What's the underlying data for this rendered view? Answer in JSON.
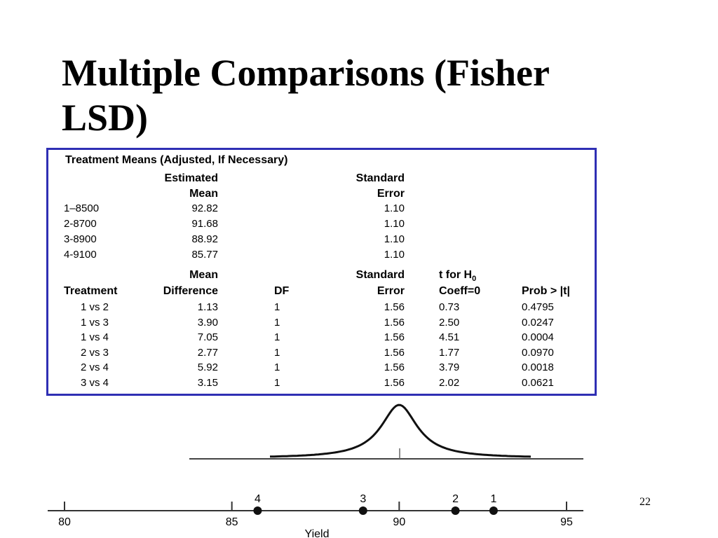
{
  "slide": {
    "title_line1": "Multiple Comparisons (Fisher",
    "title_line2": "LSD)",
    "page_number": "22"
  },
  "table": {
    "caption": "Treatment Means (Adjusted, If Necessary)",
    "means_headers": {
      "estimated_mean_1": "Estimated",
      "estimated_mean_2": "Mean",
      "se_1": "Standard",
      "se_2": "Error"
    },
    "means_rows": [
      {
        "label": "1–8500",
        "mean": "92.82",
        "se": "1.10"
      },
      {
        "label": "2-8700",
        "mean": "91.68",
        "se": "1.10"
      },
      {
        "label": "3-8900",
        "mean": "88.92",
        "se": "1.10"
      },
      {
        "label": "4-9100",
        "mean": "85.77",
        "se": "1.10"
      }
    ],
    "comp_headers": {
      "treatment": "Treatment",
      "mean_diff_1": "Mean",
      "mean_diff_2": "Difference",
      "df": "DF",
      "se_1": "Standard",
      "se_2": "Error",
      "t_1": "t for H",
      "t_sub": "0",
      "t_2": "Coeff=0",
      "prob_1": "Prob > |",
      "prob_t": "t",
      "prob_2": "|"
    },
    "comp_rows": [
      {
        "treatment": "1 vs 2",
        "diff": "1.13",
        "df": "1",
        "se": "1.56",
        "t": "0.73",
        "p": "0.4795"
      },
      {
        "treatment": "1 vs 3",
        "diff": "3.90",
        "df": "1",
        "se": "1.56",
        "t": "2.50",
        "p": "0.0247"
      },
      {
        "treatment": "1 vs 4",
        "diff": "7.05",
        "df": "1",
        "se": "1.56",
        "t": "4.51",
        "p": "0.0004"
      },
      {
        "treatment": "2 vs 3",
        "diff": "2.77",
        "df": "1",
        "se": "1.56",
        "t": "1.77",
        "p": "0.0970"
      },
      {
        "treatment": "2 vs 4",
        "diff": "5.92",
        "df": "1",
        "se": "1.56",
        "t": "3.79",
        "p": "0.0018"
      },
      {
        "treatment": "3 vs 4",
        "diff": "3.15",
        "df": "1",
        "se": "1.56",
        "t": "2.02",
        "p": "0.0621"
      }
    ]
  },
  "figure": {
    "xlabel": "Yield",
    "xlim": [
      80,
      95
    ],
    "ticks": [
      80,
      85,
      90,
      95
    ],
    "points": [
      {
        "label": "4",
        "value": 85.77
      },
      {
        "label": "3",
        "value": 88.92
      },
      {
        "label": "2",
        "value": 91.68
      },
      {
        "label": "1",
        "value": 92.82
      }
    ],
    "curve_center": 90
  }
}
